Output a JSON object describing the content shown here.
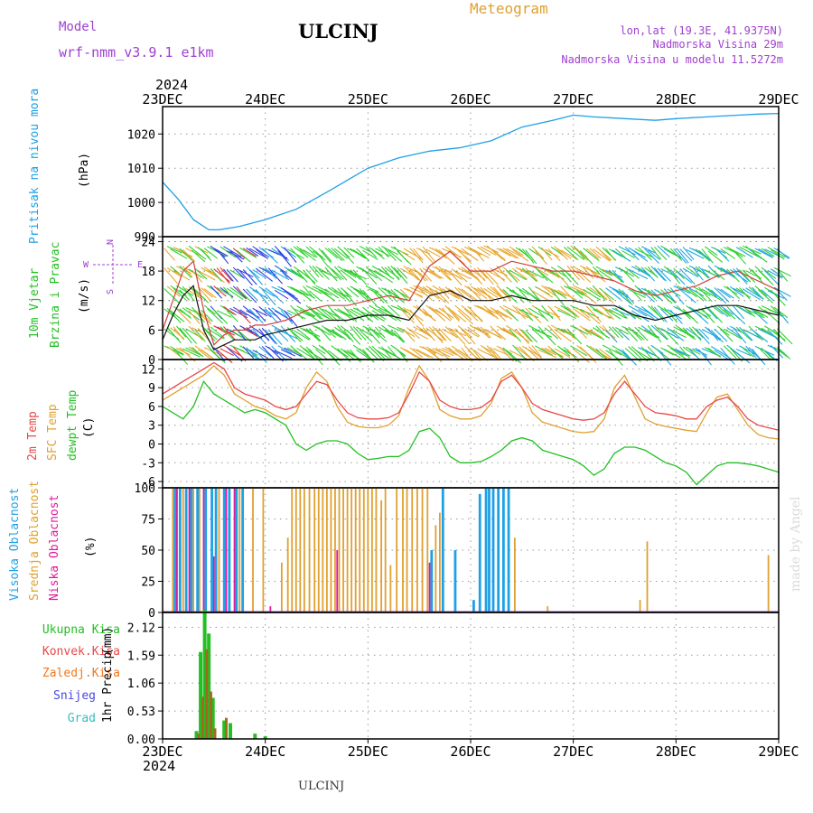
{
  "header": {
    "model_label": "Model",
    "model_name": "wrf-nmm_v3.9.1 e1km",
    "station": "ULCINJ",
    "meteogram": "Meteogram",
    "coords": "lon,lat (19.3E, 41.9375N)",
    "elevation": "Nadmorska Visina 29m",
    "model_elevation": "Nadmorska Visina u modelu 11.5272m",
    "year_top": "2024",
    "year_bottom": "2024",
    "footer_station": "ULCINJ",
    "watermark": "made by Angel"
  },
  "colors": {
    "pressure": "#1ea0e6",
    "wind_label": "#22c022",
    "t2m": "#e84848",
    "tsfc": "#e0a030",
    "dewpt": "#22c022",
    "high_cloud": "#1ea0e6",
    "mid_cloud": "#e0a030",
    "low_cloud": "#e0189a",
    "purple": "#a040d0",
    "total_precip": "#22c022",
    "convective": "#e84848",
    "frozen": "#f07820",
    "snow": "#4848e0",
    "hail": "#30c0c0",
    "wind_green": "#30d030",
    "wind_orange": "#e8a830",
    "wind_cyan": "#20a8e0",
    "wind_blue": "#3040e0",
    "wind_red": "#e03030"
  },
  "chart_data": [
    {
      "type": "line",
      "ylabel": "Pritisak na nivou mora",
      "unit": "(hPa)",
      "ylim": [
        990,
        1028
      ],
      "yticks": [
        990,
        1000,
        1010,
        1020
      ],
      "x_day": [
        0,
        0.15,
        0.3,
        0.45,
        0.55,
        0.75,
        1.0,
        1.3,
        1.6,
        2.0,
        2.3,
        2.6,
        2.9,
        3.2,
        3.5,
        3.8,
        4.0,
        4.2,
        4.5,
        4.8,
        5.0,
        5.3,
        5.6,
        5.8,
        6.0
      ],
      "values": [
        1006,
        1001,
        995,
        992,
        992,
        993,
        995,
        998,
        1003,
        1010,
        1013,
        1015,
        1016,
        1018,
        1022,
        1024,
        1025.5,
        1025,
        1024.5,
        1024,
        1024.5,
        1025,
        1025.5,
        1025.8,
        1026
      ],
      "series": [
        {
          "name": "Pritisak na nivou mora"
        }
      ]
    },
    {
      "type": "line",
      "ylabel": "10m Vjetar",
      "ylabel2": "Brzina i Pravac",
      "unit": "(m/s)",
      "ylim": [
        0,
        25
      ],
      "yticks": [
        0,
        6,
        12,
        18,
        24
      ],
      "compass": [
        "N",
        "S",
        "W",
        "E"
      ],
      "x_day": [
        0,
        0.1,
        0.2,
        0.3,
        0.4,
        0.5,
        0.6,
        0.7,
        0.8,
        0.9,
        1.0,
        1.2,
        1.4,
        1.6,
        1.8,
        2.0,
        2.2,
        2.4,
        2.6,
        2.8,
        3.0,
        3.2,
        3.4,
        3.6,
        3.8,
        4.0,
        4.2,
        4.4,
        4.6,
        4.8,
        5.0,
        5.2,
        5.4,
        5.6,
        5.8,
        6.0
      ],
      "speed": [
        4,
        9,
        13,
        15,
        6,
        2,
        3,
        4,
        4,
        4,
        5,
        6,
        7,
        8,
        8,
        9,
        9,
        8,
        13,
        14,
        12,
        12,
        13,
        12,
        12,
        12,
        11,
        11,
        9,
        8,
        9,
        10,
        11,
        11,
        10,
        9
      ],
      "gust": [
        6,
        12,
        18,
        20,
        10,
        3,
        5,
        6,
        6,
        7,
        7,
        8,
        10,
        11,
        11,
        12,
        13,
        12,
        19,
        22,
        18,
        18,
        20,
        19,
        18,
        18,
        17,
        16,
        14,
        13,
        14,
        15,
        17,
        18,
        16,
        14
      ],
      "bands": [
        {
          "x0": 0.0,
          "x1": 0.45,
          "colors": [
            "#30d030",
            "#e8a830"
          ]
        },
        {
          "x0": 0.45,
          "x1": 0.8,
          "colors": [
            "#3040e0",
            "#e03030",
            "#30d030"
          ]
        },
        {
          "x0": 0.8,
          "x1": 1.2,
          "colors": [
            "#3040e0",
            "#20a8e0"
          ]
        },
        {
          "x0": 1.2,
          "x1": 2.3,
          "colors": [
            "#30d030"
          ]
        },
        {
          "x0": 2.3,
          "x1": 3.3,
          "colors": [
            "#e8a830"
          ]
        },
        {
          "x0": 3.3,
          "x1": 4.3,
          "colors": [
            "#30d030",
            "#e8a830"
          ]
        },
        {
          "x0": 4.3,
          "x1": 4.9,
          "colors": [
            "#30d030",
            "#20a8e0"
          ]
        },
        {
          "x0": 4.9,
          "x1": 6.0,
          "colors": [
            "#30d030",
            "#20a8e0"
          ]
        }
      ],
      "series": [
        {
          "name": "10m Vjetar"
        },
        {
          "name": "Brzina i Pravac"
        }
      ]
    },
    {
      "type": "line",
      "unit": "(C)",
      "ylim": [
        -7,
        13.5
      ],
      "yticks": [
        -6,
        -3,
        0,
        3,
        6,
        9,
        12
      ],
      "x_day": [
        0,
        0.1,
        0.2,
        0.3,
        0.4,
        0.5,
        0.6,
        0.7,
        0.8,
        0.9,
        1.0,
        1.1,
        1.2,
        1.3,
        1.4,
        1.5,
        1.6,
        1.7,
        1.8,
        1.9,
        2.0,
        2.1,
        2.2,
        2.3,
        2.4,
        2.5,
        2.6,
        2.7,
        2.8,
        2.9,
        3.0,
        3.1,
        3.2,
        3.3,
        3.4,
        3.5,
        3.6,
        3.7,
        3.8,
        3.9,
        4.0,
        4.1,
        4.2,
        4.3,
        4.4,
        4.5,
        4.6,
        4.7,
        4.8,
        4.9,
        5.0,
        5.1,
        5.2,
        5.3,
        5.4,
        5.5,
        5.6,
        5.7,
        5.8,
        5.9,
        6.0
      ],
      "series": [
        {
          "name": "2m Temp",
          "values": [
            8,
            9,
            10,
            11,
            12,
            13,
            12,
            9,
            8,
            7.5,
            7,
            6,
            5.5,
            6,
            8,
            10,
            9.5,
            7,
            5,
            4.2,
            4,
            4,
            4.2,
            5,
            8,
            11.5,
            10,
            7,
            6,
            5.5,
            5.5,
            5.8,
            7,
            10,
            11,
            9,
            6.5,
            5.5,
            5,
            4.5,
            4,
            3.8,
            4,
            5,
            8,
            10,
            8,
            6,
            5,
            4.8,
            4.5,
            4,
            4,
            6,
            7,
            7.5,
            6,
            4,
            3,
            2.6,
            2.2
          ]
        },
        {
          "name": "SFC Temp",
          "values": [
            7,
            8,
            9,
            10,
            11,
            12.5,
            11,
            8,
            7,
            6,
            5.5,
            4.5,
            4,
            5,
            9,
            11.5,
            10,
            6,
            3.5,
            2.8,
            2.6,
            2.6,
            3,
            4.5,
            9,
            12.5,
            10,
            5.5,
            4.5,
            4,
            4,
            4.5,
            6.5,
            10.5,
            11.5,
            9,
            5,
            3.5,
            3,
            2.5,
            2,
            1.8,
            2,
            4,
            9,
            11,
            7.5,
            4,
            3.2,
            2.8,
            2.5,
            2.2,
            2,
            5,
            7.5,
            8,
            5.5,
            3,
            1.5,
            1,
            0.8
          ]
        },
        {
          "name": "dewpt Temp",
          "values": [
            6,
            5,
            4,
            6,
            10,
            8,
            7,
            6,
            5,
            5.5,
            5,
            4,
            3,
            0,
            -1,
            0,
            0.5,
            0.5,
            0,
            -1.5,
            -2.5,
            -2.3,
            -2,
            -2,
            -1,
            2,
            2.5,
            1,
            -2,
            -3,
            -3,
            -2.8,
            -2,
            -1,
            0.5,
            1,
            0.5,
            -1,
            -1.5,
            -2,
            -2.5,
            -3.5,
            -5,
            -4,
            -1.5,
            -0.5,
            -0.5,
            -1,
            -2,
            -3,
            -3.5,
            -4.5,
            -6.5,
            -5,
            -3.5,
            -3,
            -3,
            -3.2,
            -3.5,
            -4,
            -4.5
          ]
        }
      ]
    },
    {
      "type": "bar",
      "unit": "(%)",
      "ylim": [
        0,
        100
      ],
      "yticks": [
        0,
        25,
        50,
        75,
        100
      ],
      "series": [
        {
          "name": "Visoka Oblacnost",
          "x_day": [
            0.12,
            0.17,
            0.23,
            0.28,
            0.34,
            0.42,
            0.48,
            0.52,
            0.6,
            0.65,
            0.72,
            0.78,
            2.62,
            2.73,
            2.85,
            3.03,
            3.09,
            3.15,
            3.18,
            3.22,
            3.27,
            3.32,
            3.37
          ],
          "values": [
            100,
            100,
            100,
            100,
            100,
            100,
            100,
            100,
            100,
            100,
            100,
            100,
            50,
            100,
            50,
            10,
            95,
            100,
            100,
            100,
            100,
            100,
            100
          ]
        },
        {
          "name": "Srednja Oblacnost",
          "x_day": [
            0.1,
            0.2,
            0.3,
            0.36,
            0.55,
            0.75,
            0.88,
            0.98,
            1.16,
            1.22,
            1.26,
            1.3,
            1.34,
            1.38,
            1.43,
            1.48,
            1.52,
            1.56,
            1.6,
            1.64,
            1.68,
            1.72,
            1.76,
            1.8,
            1.84,
            1.88,
            1.92,
            1.96,
            2.0,
            2.04,
            2.08,
            2.13,
            2.17,
            2.22,
            2.28,
            2.34,
            2.38,
            2.43,
            2.48,
            2.53,
            2.58,
            2.66,
            2.7,
            3.43,
            3.75,
            4.65,
            4.72,
            5.9
          ],
          "values": [
            100,
            100,
            100,
            100,
            100,
            100,
            100,
            100,
            40,
            60,
            100,
            100,
            100,
            100,
            100,
            100,
            100,
            100,
            100,
            100,
            100,
            100,
            100,
            100,
            100,
            100,
            100,
            100,
            100,
            100,
            100,
            90,
            100,
            38,
            100,
            100,
            100,
            100,
            100,
            100,
            100,
            70,
            80,
            60,
            5,
            10,
            57,
            46
          ]
        },
        {
          "name": "Niska Oblacnost",
          "x_day": [
            0.14,
            0.26,
            0.4,
            0.5,
            0.62,
            0.7,
            1.05,
            1.7,
            2.6
          ],
          "values": [
            100,
            100,
            100,
            45,
            100,
            100,
            5,
            50,
            40
          ]
        }
      ]
    },
    {
      "type": "bar",
      "ylabel": "1hr Precip",
      "unit": "(mm)",
      "ylim": [
        0,
        2.4
      ],
      "yticks": [
        0,
        0.53,
        1.06,
        1.59,
        2.12
      ],
      "series": [
        {
          "name": "Ukupna Kisa",
          "x_day": [
            0.33,
            0.37,
            0.41,
            0.45,
            0.49,
            0.6,
            0.66,
            0.9,
            1.0
          ],
          "values": [
            0.15,
            1.65,
            2.45,
            2.0,
            0.78,
            0.35,
            0.3,
            0.1,
            0.05
          ]
        },
        {
          "name": "Konvek.Kisa",
          "x_day": [
            0.35,
            0.39,
            0.43,
            0.47,
            0.51,
            0.62
          ],
          "values": [
            0.1,
            0.8,
            1.7,
            0.9,
            0.2,
            0.4
          ]
        },
        {
          "name": "Zaledj.Kisa",
          "x_day": [],
          "values": []
        },
        {
          "name": "Snijeg",
          "x_day": [],
          "values": []
        },
        {
          "name": "Grad",
          "x_day": [],
          "values": []
        }
      ]
    }
  ],
  "xaxis": {
    "day_labels": [
      "23DEC",
      "24DEC",
      "25DEC",
      "26DEC",
      "27DEC",
      "28DEC",
      "29DEC"
    ],
    "days": 6
  }
}
